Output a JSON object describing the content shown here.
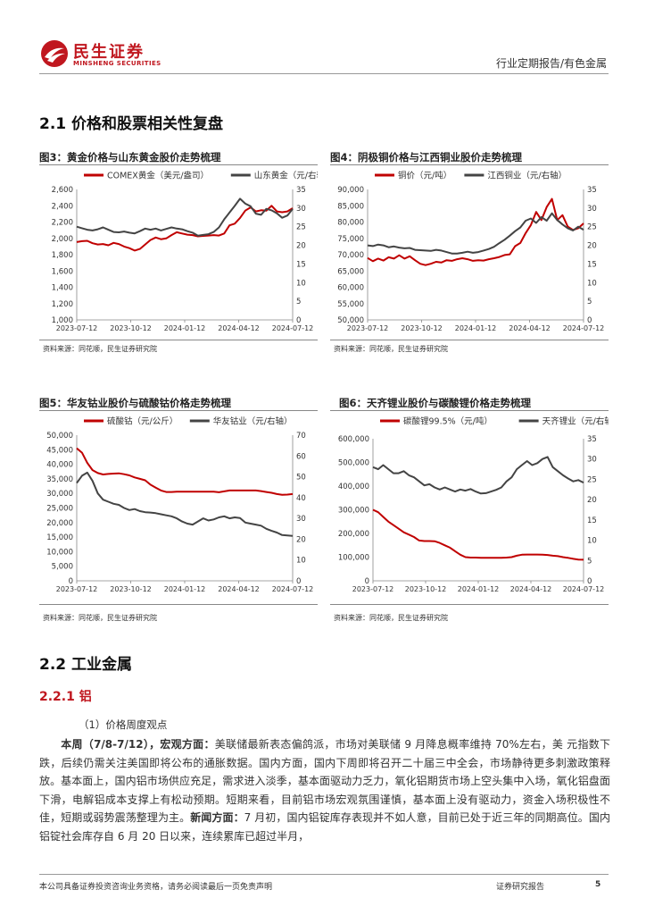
{
  "header": {
    "brand_cn": "民生证券",
    "brand_en": "MINSHENG SECURITIES",
    "report_type": "行业定期报告/有色金属"
  },
  "section_heading": "2.1 价格和股票相关性复盘",
  "section2_heading": "2.2 工业金属",
  "subsection_heading": "2.2.1 铝",
  "point_label": "（1）价格周度观点",
  "body": {
    "lead_bold": "本周（7/8-7/12），宏观方面：",
    "text1": "美联储最新表态偏鸽派，市场对美联储 9 月降息概率维持 70%左右，美 元指数下跌，后续仍需关注美国即将公布的通胀数据。国内方面，国内下周即将召开二十届三中全会，市场静待更多刺激政策释放。基本面上，国内铝市场供应充足，需求进入淡季，基本面驱动力乏力，氧化铝期货市场上空头集中入场，氧化铝盘面下滑，电解铝成本支撑上有松动预期。短期来看，目前铝市场宏观氛围谨慎，基本面上没有驱动力，资金入场积极性不佳，短期或弱势震荡整理为主。",
    "news_bold": "新闻方面：",
    "text2": "7 月初，国内铝锭库存表现并不如人意，目前已处于近三年的同期高位。国内铝锭社会库存自 6 月 20 日以来，连续累库已超过半月，"
  },
  "footer": {
    "disclaimer": "本公司具备证券投资咨询业务资格，请务必阅读最后一页免责声明",
    "label": "证券研究报告",
    "page": "5"
  },
  "colors": {
    "red": "#c00000",
    "gray": "#444444",
    "brand": "#c0171f"
  },
  "chart_data": [
    {
      "id": "fig3",
      "type": "line",
      "title": "图3：黄金价格与山东黄金股价走势梳理",
      "source": "资料来源：同花顺，民生证券研究院",
      "x_ticks": [
        "2023-07-12",
        "2023-10-12",
        "2024-01-12",
        "2024-04-12",
        "2024-07-12"
      ],
      "left_axis": {
        "ticks": [
          "2,600",
          "2,400",
          "2,200",
          "2,000",
          "1,800",
          "1,600",
          "1,400",
          "1,200",
          "1,000"
        ],
        "range": [
          1000,
          2600
        ]
      },
      "right_axis": {
        "ticks": [
          "35",
          "30",
          "25",
          "20",
          "15",
          "10",
          "5",
          "0"
        ],
        "range": [
          0,
          35
        ]
      },
      "series": [
        {
          "name": "COMEX黄金（美元/盎司）",
          "axis": "left",
          "color": "red",
          "values": [
            1955,
            1965,
            1970,
            1940,
            1925,
            1930,
            1915,
            1945,
            1930,
            1900,
            1880,
            1850,
            1870,
            1925,
            1980,
            2010,
            1990,
            2000,
            2040,
            2075,
            2060,
            2045,
            2040,
            2025,
            2030,
            2035,
            2040,
            2035,
            2060,
            2160,
            2180,
            2250,
            2340,
            2380,
            2330,
            2345,
            2340,
            2400,
            2330,
            2320,
            2330,
            2370
          ]
        },
        {
          "name": "山东黄金（元/右轴）",
          "axis": "right",
          "color": "gray",
          "values": [
            25.0,
            24.6,
            24.2,
            24.0,
            24.3,
            24.8,
            24.2,
            23.6,
            23.5,
            23.7,
            23.4,
            23.2,
            23.8,
            24.5,
            24.2,
            24.5,
            24.0,
            24.4,
            24.8,
            24.5,
            24.3,
            23.8,
            23.4,
            22.6,
            22.8,
            23.0,
            23.6,
            24.8,
            27.0,
            28.8,
            30.6,
            32.5,
            31.2,
            30.5,
            28.5,
            28.2,
            29.8,
            29.4,
            28.6,
            27.4,
            28.0,
            29.8
          ]
        }
      ]
    },
    {
      "id": "fig4",
      "type": "line",
      "title": "图4：阴极铜价格与江西铜业股价走势梳理",
      "source": "资料来源：同花顺，民生证券研究院",
      "x_ticks": [
        "2023-07-12",
        "2023-10-12",
        "2024-01-12",
        "2024-04-12",
        "2024-07-12"
      ],
      "left_axis": {
        "ticks": [
          "90,000",
          "85,000",
          "80,000",
          "75,000",
          "70,000",
          "65,000",
          "60,000",
          "55,000",
          "50,000"
        ],
        "range": [
          50000,
          90000
        ]
      },
      "right_axis": {
        "ticks": [
          "35",
          "30",
          "25",
          "20",
          "15",
          "10",
          "5",
          "0"
        ],
        "range": [
          0,
          35
        ]
      },
      "series": [
        {
          "name": "铜价（元/吨）",
          "axis": "left",
          "color": "red",
          "values": [
            69000,
            68000,
            68800,
            68200,
            69200,
            68800,
            69800,
            68800,
            69500,
            68300,
            67200,
            66800,
            67200,
            67800,
            67600,
            68300,
            68100,
            68600,
            68900,
            68600,
            68100,
            68300,
            68200,
            68600,
            68900,
            69300,
            69900,
            70100,
            72600,
            73600,
            76600,
            79100,
            83100,
            80600,
            84600,
            87100,
            80600,
            82100,
            78600,
            77600,
            78100,
            79600
          ]
        },
        {
          "name": "江西铜业（元/右轴）",
          "axis": "right",
          "color": "gray",
          "values": [
            20.0,
            19.8,
            20.2,
            20.0,
            19.5,
            19.7,
            19.4,
            19.2,
            19.3,
            18.8,
            18.7,
            18.6,
            18.5,
            18.8,
            18.6,
            18.2,
            17.8,
            17.8,
            18.0,
            18.3,
            18.0,
            18.2,
            18.6,
            19.0,
            19.6,
            20.6,
            21.5,
            22.6,
            23.8,
            24.8,
            26.6,
            27.2,
            26.0,
            27.6,
            26.6,
            28.6,
            26.8,
            25.6,
            24.6,
            24.0,
            25.0,
            24.2
          ]
        }
      ]
    },
    {
      "id": "fig5",
      "type": "line",
      "title": "图5：华友钴业股价与硫酸钴价格走势梳理",
      "source": "资料来源：同花顺，民生证券研究院",
      "x_ticks": [
        "2023-07-12",
        "2023-10-12",
        "2024-01-12",
        "2024-04-12",
        "2024-07-12"
      ],
      "left_axis": {
        "ticks": [
          "50,000",
          "45,000",
          "40,000",
          "35,000",
          "30,000",
          "25,000",
          "20,000",
          "15,000",
          "10,000",
          "5,000",
          "0"
        ],
        "range": [
          0,
          50000
        ]
      },
      "right_axis": {
        "ticks": [
          "70",
          "60",
          "50",
          "40",
          "30",
          "20",
          "10",
          "0"
        ],
        "range": [
          0,
          70
        ]
      },
      "series": [
        {
          "name": "硫酸钴（元/公斤）",
          "axis": "left",
          "color": "red",
          "values": [
            45500,
            44000,
            40500,
            38000,
            37000,
            36500,
            36700,
            36800,
            36900,
            36600,
            36200,
            35500,
            35000,
            34500,
            33000,
            32000,
            31000,
            30500,
            30500,
            30600,
            30600,
            30600,
            30600,
            30600,
            30600,
            30600,
            30600,
            30400,
            30700,
            31000,
            31000,
            31000,
            31000,
            31000,
            31000,
            30800,
            30500,
            30200,
            29800,
            29500,
            29600,
            29800
          ]
        },
        {
          "name": "华友钴业（元/右轴）",
          "axis": "right",
          "color": "gray",
          "values": [
            47.0,
            50.5,
            52.0,
            48.0,
            42.0,
            39.0,
            38.0,
            37.0,
            36.5,
            35.0,
            34.0,
            34.5,
            33.5,
            33.0,
            32.8,
            32.5,
            32.0,
            31.5,
            31.0,
            30.0,
            28.5,
            27.5,
            27.0,
            28.5,
            30.0,
            29.0,
            29.5,
            30.5,
            31.0,
            30.0,
            30.5,
            30.2,
            28.0,
            27.5,
            27.0,
            26.5,
            25.0,
            24.0,
            23.2,
            22.0,
            21.8,
            21.6
          ]
        }
      ]
    },
    {
      "id": "fig6",
      "type": "line",
      "title": "图6：天齐锂业股价与碳酸锂价格走势梳理",
      "source": "资料来源：同花顺，民生证券研究院",
      "x_ticks": [
        "2023-07-12",
        "2023-10-12",
        "2024-01-12",
        "2024-04-12",
        "2024-07-12"
      ],
      "left_axis": {
        "ticks": [
          "600,000",
          "500,000",
          "400,000",
          "300,000",
          "200,000",
          "100,000",
          "0"
        ],
        "range": [
          0,
          600000
        ]
      },
      "right_axis": {
        "ticks": [
          "35",
          "30",
          "25",
          "20",
          "15",
          "10",
          "5",
          "0"
        ],
        "range": [
          0,
          35
        ]
      },
      "series": [
        {
          "name": "碳酸锂99.5%（元/吨）",
          "axis": "left",
          "color": "red",
          "values": [
            300000,
            290000,
            270000,
            250000,
            235000,
            220000,
            205000,
            195000,
            185000,
            170000,
            168000,
            168000,
            167000,
            160000,
            150000,
            140000,
            125000,
            110000,
            100000,
            98000,
            98000,
            97000,
            97000,
            97000,
            97000,
            97000,
            98000,
            100000,
            106000,
            110000,
            111000,
            111000,
            111000,
            110000,
            109000,
            106000,
            104000,
            100000,
            97000,
            93000,
            90000,
            89000
          ]
        },
        {
          "name": "天齐锂业（元/右轴）",
          "axis": "right",
          "color": "gray",
          "values": [
            28.0,
            27.5,
            28.5,
            27.5,
            26.5,
            26.5,
            27.0,
            26.0,
            25.5,
            24.5,
            23.5,
            23.8,
            23.0,
            22.5,
            23.0,
            22.5,
            22.0,
            22.5,
            22.2,
            22.6,
            22.0,
            21.5,
            21.6,
            22.0,
            22.4,
            23.0,
            24.5,
            25.5,
            27.5,
            28.5,
            29.5,
            28.5,
            29.0,
            30.0,
            30.5,
            28.0,
            27.0,
            26.0,
            25.2,
            24.5,
            24.8,
            24.2
          ]
        }
      ]
    }
  ]
}
